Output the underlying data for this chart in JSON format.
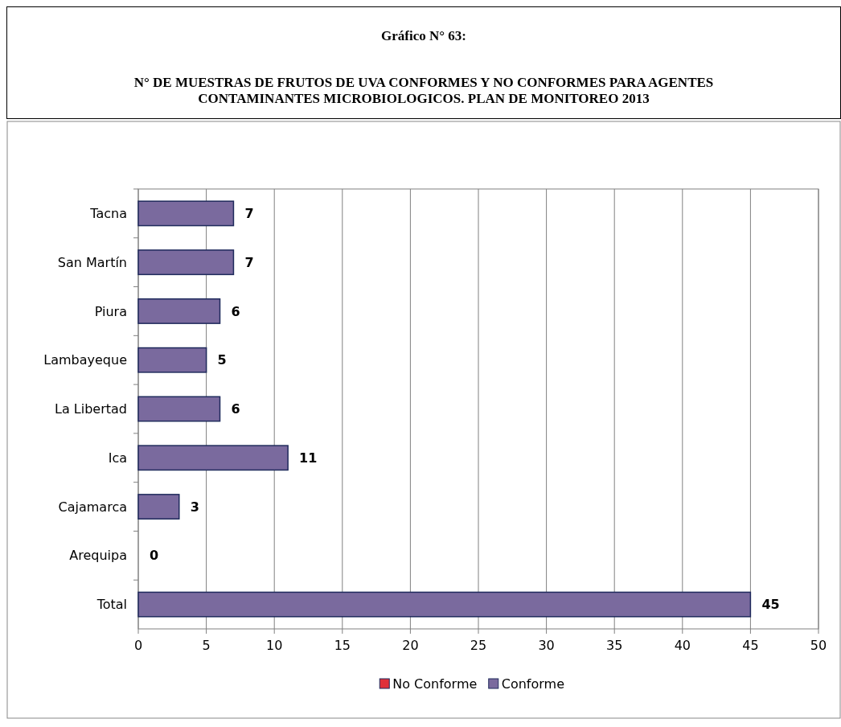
{
  "chart_data": {
    "type": "bar",
    "orientation": "horizontal",
    "stacked": true,
    "title": "Gráfico N° 63:",
    "subtitle": "N° DE MUESTRAS DE FRUTOS DE UVA CONFORMES Y NO CONFORMES PARA AGENTES CONTAMINANTES MICROBIOLOGICOS. PLAN DE MONITOREO 2013",
    "categories": [
      "Tacna",
      "San Martín",
      "Piura",
      "Lambayeque",
      "La Libertad",
      "Ica",
      "Cajamarca",
      "Arequipa",
      "Total"
    ],
    "series": [
      {
        "name": "No Conforme",
        "color": "#e0303a",
        "values": [
          0,
          0,
          0,
          0,
          0,
          0,
          0,
          0,
          0
        ]
      },
      {
        "name": "Conforme",
        "color": "#7a6a9e",
        "values": [
          7,
          7,
          6,
          5,
          6,
          11,
          3,
          0,
          45
        ],
        "value_labels": [
          "7",
          "7",
          "6",
          "5",
          "6",
          "11",
          "3",
          "0",
          "45"
        ]
      }
    ],
    "xlim": [
      0,
      50
    ],
    "xticks": [
      0,
      5,
      10,
      15,
      20,
      25,
      30,
      35,
      40,
      45,
      50
    ],
    "grid": "x",
    "legend": "bottom"
  }
}
